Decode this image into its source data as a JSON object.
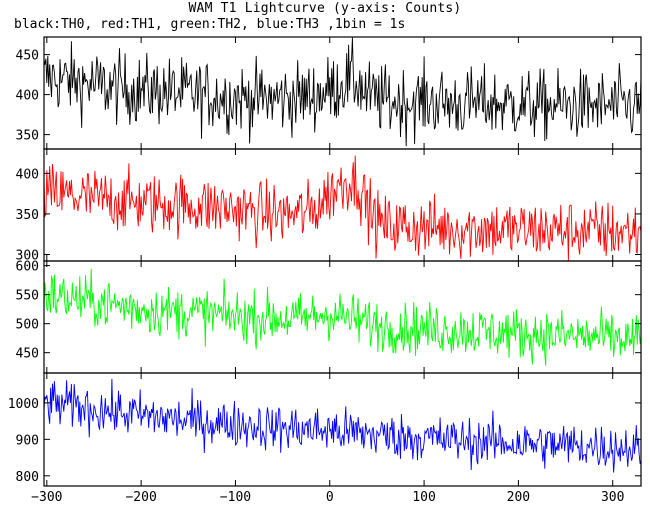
{
  "title": "WAM T1 Lightcurve (y-axis: Counts)",
  "subtitle": "black:TH0, red:TH1, green:TH2, blue:TH3 ,1bin = 1s",
  "chart_data": {
    "type": "line",
    "x_ticks": [
      -300,
      -200,
      -100,
      0,
      100,
      200,
      300
    ],
    "xlim": [
      -303,
      330
    ],
    "bin_seconds": 1,
    "panels": [
      {
        "id": "TH0",
        "color": "#000000",
        "ylim": [
          332,
          472
        ],
        "yticks": [
          350,
          400,
          450
        ],
        "x": [
          -300,
          -280,
          -260,
          -240,
          -220,
          -200,
          -180,
          -160,
          -140,
          -120,
          -100,
          -80,
          -60,
          -40,
          -20,
          0,
          10,
          20,
          30,
          40,
          60,
          80,
          100,
          120,
          140,
          160,
          180,
          200,
          220,
          240,
          260,
          280,
          300,
          330
        ],
        "y": [
          422,
          418,
          415,
          410,
          408,
          405,
          405,
          402,
          400,
          398,
          396,
          395,
          395,
          396,
          398,
          405,
          412,
          420,
          415,
          398,
          392,
          390,
          392,
          390,
          388,
          390,
          388,
          388,
          386,
          386,
          387,
          386,
          386,
          386
        ],
        "noise": 22
      },
      {
        "id": "TH1",
        "color": "#ff0000",
        "ylim": [
          292,
          430
        ],
        "yticks": [
          300,
          350,
          400
        ],
        "x": [
          -300,
          -280,
          -260,
          -240,
          -220,
          -200,
          -180,
          -160,
          -140,
          -120,
          -100,
          -80,
          -60,
          -40,
          -20,
          0,
          10,
          20,
          30,
          40,
          50,
          60,
          80,
          100,
          120,
          140,
          160,
          180,
          200,
          220,
          240,
          260,
          280,
          300,
          330
        ],
        "y": [
          375,
          373,
          370,
          368,
          366,
          364,
          362,
          362,
          360,
          358,
          356,
          352,
          350,
          350,
          352,
          375,
          385,
          392,
          388,
          360,
          340,
          335,
          335,
          333,
          333,
          332,
          332,
          331,
          330,
          330,
          330,
          330,
          329,
          329,
          328
        ],
        "noise": 19
      },
      {
        "id": "TH2",
        "color": "#00ff00",
        "ylim": [
          415,
          608
        ],
        "yticks": [
          450,
          500,
          550,
          600
        ],
        "x": [
          -300,
          -270,
          -240,
          -210,
          -180,
          -150,
          -120,
          -90,
          -60,
          -30,
          0,
          30,
          60,
          90,
          120,
          150,
          180,
          210,
          240,
          270,
          300,
          330
        ],
        "y": [
          550,
          542,
          535,
          528,
          522,
          520,
          515,
          512,
          510,
          508,
          518,
          505,
          495,
          492,
          490,
          488,
          485,
          482,
          480,
          478,
          475,
          472
        ],
        "noise": 22
      },
      {
        "id": "TH3",
        "color": "#0000ff",
        "ylim": [
          772,
          1082
        ],
        "yticks": [
          800,
          900,
          1000
        ],
        "x": [
          -300,
          -270,
          -240,
          -210,
          -180,
          -150,
          -120,
          -90,
          -60,
          -30,
          0,
          30,
          60,
          90,
          120,
          150,
          180,
          210,
          240,
          270,
          300,
          330
        ],
        "y": [
          1000,
          990,
          980,
          970,
          960,
          952,
          945,
          940,
          932,
          928,
          925,
          918,
          910,
          905,
          900,
          895,
          892,
          888,
          885,
          882,
          878,
          875
        ],
        "noise": 32
      }
    ]
  }
}
